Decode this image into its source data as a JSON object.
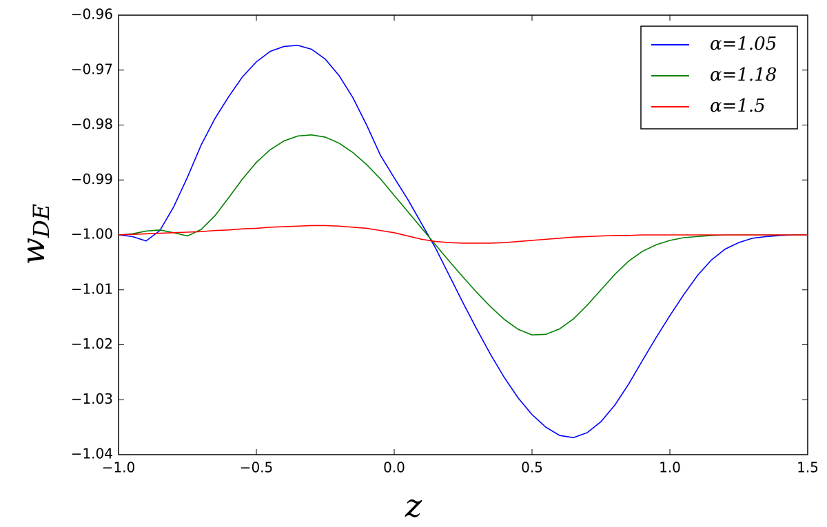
{
  "chart_data": {
    "type": "line",
    "xlabel": "z",
    "ylabel": {
      "base": "w",
      "sub": "DE"
    },
    "x": [
      -1.0,
      -0.95,
      -0.9,
      -0.85,
      -0.8,
      -0.75,
      -0.7,
      -0.65,
      -0.6,
      -0.55,
      -0.5,
      -0.45,
      -0.4,
      -0.35,
      -0.3,
      -0.25,
      -0.2,
      -0.15,
      -0.1,
      -0.05,
      0.0,
      0.05,
      0.1,
      0.15,
      0.2,
      0.25,
      0.3,
      0.35,
      0.4,
      0.45,
      0.5,
      0.55,
      0.6,
      0.65,
      0.7,
      0.75,
      0.8,
      0.85,
      0.9,
      0.95,
      1.0,
      1.05,
      1.1,
      1.15,
      1.2,
      1.25,
      1.3,
      1.35,
      1.4,
      1.45,
      1.5
    ],
    "series": [
      {
        "name": "α=1.05",
        "color": "#0000ff",
        "values": [
          -1.0,
          -1.0003,
          -1.0011,
          -0.9992,
          -0.9949,
          -0.9895,
          -0.9836,
          -0.9788,
          -0.9748,
          -0.9712,
          -0.9685,
          -0.9666,
          -0.9657,
          -0.9655,
          -0.9662,
          -0.968,
          -0.971,
          -0.975,
          -0.98,
          -0.9855,
          -0.9896,
          -0.9936,
          -0.998,
          -1.0024,
          -1.0074,
          -1.0124,
          -1.0172,
          -1.0218,
          -1.026,
          -1.0297,
          -1.0327,
          -1.035,
          -1.0365,
          -1.0369,
          -1.036,
          -1.034,
          -1.031,
          -1.0272,
          -1.0229,
          -1.0187,
          -1.0147,
          -1.0109,
          -1.0074,
          -1.0046,
          -1.0026,
          -1.0014,
          -1.0006,
          -1.0003,
          -1.0001,
          -1.0,
          -1.0
        ]
      },
      {
        "name": "α=1.18",
        "color": "#008000",
        "values": [
          -1.0,
          -0.9998,
          -0.9993,
          -0.9991,
          -0.9996,
          -1.0002,
          -0.999,
          -0.9965,
          -0.9932,
          -0.9898,
          -0.9868,
          -0.9845,
          -0.9829,
          -0.982,
          -0.9818,
          -0.9822,
          -0.9833,
          -0.985,
          -0.9872,
          -0.9898,
          -0.9928,
          -0.9958,
          -0.9988,
          -1.0018,
          -1.0048,
          -1.0077,
          -1.0105,
          -1.0131,
          -1.0154,
          -1.0172,
          -1.0182,
          -1.0181,
          -1.0171,
          -1.0153,
          -1.0128,
          -1.01,
          -1.0072,
          -1.0048,
          -1.003,
          -1.0018,
          -1.001,
          -1.0005,
          -1.0003,
          -1.0001,
          -1.0,
          -1.0,
          -1.0,
          -1.0,
          -1.0,
          -1.0,
          -1.0
        ]
      },
      {
        "name": "α=1.5",
        "color": "#ff0000",
        "values": [
          -1.0,
          -0.9999,
          -0.9998,
          -0.9997,
          -0.9996,
          -0.9995,
          -0.9994,
          -0.9992,
          -0.9991,
          -0.9989,
          -0.9988,
          -0.9986,
          -0.9985,
          -0.9984,
          -0.9983,
          -0.9983,
          -0.9984,
          -0.9986,
          -0.9988,
          -0.9992,
          -0.9996,
          -1.0002,
          -1.0008,
          -1.0012,
          -1.0014,
          -1.0015,
          -1.0015,
          -1.0015,
          -1.0014,
          -1.0012,
          -1.001,
          -1.0008,
          -1.0006,
          -1.0004,
          -1.0003,
          -1.0002,
          -1.0001,
          -1.0001,
          -1.0,
          -1.0,
          -1.0,
          -1.0,
          -1.0,
          -1.0,
          -1.0,
          -1.0,
          -1.0,
          -1.0,
          -1.0,
          -1.0,
          -1.0
        ]
      }
    ],
    "xlim": [
      -1.0,
      1.5
    ],
    "ylim": [
      -1.04,
      -0.96
    ],
    "xticks": [
      {
        "value": -1.0,
        "label": "−1.0"
      },
      {
        "value": -0.5,
        "label": "−0.5"
      },
      {
        "value": 0.0,
        "label": "0.0"
      },
      0.5,
      {
        "value": 1.0,
        "label": "1.0"
      },
      1.5
    ],
    "yticks": [
      {
        "value": -1.04,
        "label": "−1.04"
      },
      {
        "value": -1.03,
        "label": "−1.03"
      },
      {
        "value": -1.02,
        "label": "−1.02"
      },
      {
        "value": -1.01,
        "label": "−1.01"
      },
      {
        "value": -1.0,
        "label": "−1.00"
      },
      {
        "value": -0.99,
        "label": "−0.99"
      },
      {
        "value": -0.98,
        "label": "−0.98"
      },
      {
        "value": -0.97,
        "label": "−0.97"
      },
      {
        "value": -0.96,
        "label": "−0.96"
      }
    ],
    "grid": false,
    "legend": "upper right"
  }
}
